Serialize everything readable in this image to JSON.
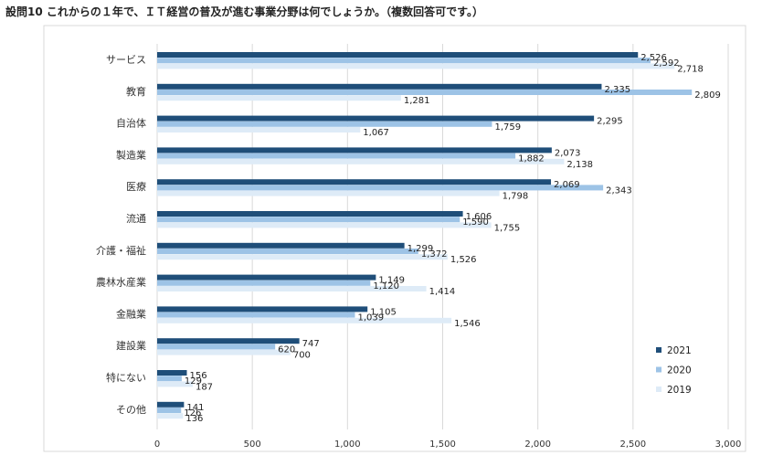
{
  "chart_data": {
    "type": "bar",
    "orientation": "horizontal",
    "title": "設問10 これからの１年で、ＩＴ経営の普及が進む事業分野は何でしょうか。（複数回答可です。）",
    "xlabel": "",
    "ylabel": "",
    "xlim": [
      0,
      3000
    ],
    "xticks": [
      0,
      500,
      1000,
      1500,
      2000,
      2500,
      3000
    ],
    "xtick_labels": [
      "0",
      "500",
      "1,000",
      "1,500",
      "2,000",
      "2,500",
      "3,000"
    ],
    "grid": true,
    "legend_position": "right",
    "categories": [
      "サービス",
      "教育",
      "自治体",
      "製造業",
      "医療",
      "流通",
      "介護・福祉",
      "農林水産業",
      "金融業",
      "建設業",
      "特にない",
      "その他"
    ],
    "series": [
      {
        "name": "2021",
        "color": "#1f4e79",
        "values": [
          2526,
          2335,
          2295,
          2073,
          2069,
          1606,
          1299,
          1149,
          1105,
          747,
          156,
          141
        ],
        "labels": [
          "2,526",
          "2,335",
          "2,295",
          "2,073",
          "2,069",
          "1,606",
          "1,299",
          "1,149",
          "1,105",
          "747",
          "156",
          "141"
        ]
      },
      {
        "name": "2020",
        "color": "#9dc3e6",
        "values": [
          2592,
          2809,
          1759,
          1882,
          2343,
          1590,
          1372,
          1120,
          1039,
          620,
          129,
          126
        ],
        "labels": [
          "2,592",
          "2,809",
          "1,759",
          "1,882",
          "2,343",
          "1,590",
          "1,372",
          "1,120",
          "1,039",
          "620",
          "129",
          "126"
        ]
      },
      {
        "name": "2019",
        "color": "#deebf7",
        "values": [
          2718,
          1281,
          1067,
          2138,
          1798,
          1755,
          1526,
          1414,
          1546,
          700,
          187,
          136
        ],
        "labels": [
          "2,718",
          "1,281",
          "1,067",
          "2,138",
          "1,798",
          "1,755",
          "1,526",
          "1,414",
          "1,546",
          "700",
          "187",
          "136"
        ]
      }
    ]
  }
}
